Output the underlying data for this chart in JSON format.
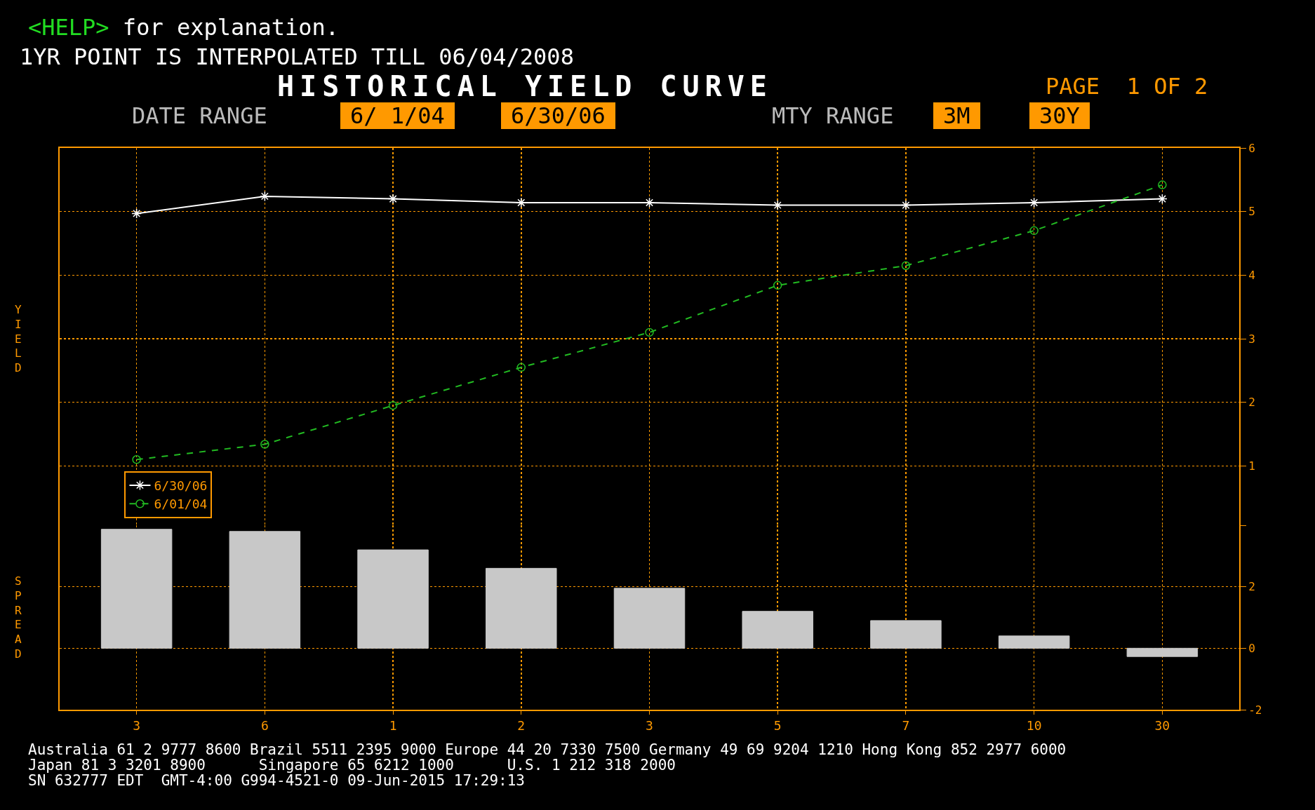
{
  "chart_data": [
    {
      "type": "line",
      "title": "HISTORICAL YIELD CURVE",
      "ylabel": "YIELD",
      "annotations": [
        "<HELP> for explanation.",
        "1YR POINT IS INTERPOLATED TILL 06/04/2008",
        "PAGE  1 OF 2",
        "DATE RANGE",
        "6/ 1/04",
        "6/30/06",
        "MTY RANGE",
        "3M",
        "30Y"
      ],
      "categories": [
        "3",
        "6",
        "1",
        "2",
        "3",
        "5",
        "7",
        "10",
        "30"
      ],
      "series": [
        {
          "name": "6/30/06",
          "color": "#ffffff",
          "marker": "cross",
          "line_style": "solid",
          "values": [
            4.97,
            5.24,
            5.2,
            5.14,
            5.14,
            5.1,
            5.1,
            5.14,
            5.2
          ]
        },
        {
          "name": "6/01/04",
          "color": "#22bb22",
          "marker": "circle",
          "line_style": "dashed",
          "values": [
            1.1,
            1.34,
            1.95,
            2.55,
            3.1,
            3.84,
            4.15,
            4.7,
            5.42
          ]
        }
      ],
      "ylim": [
        0,
        6
      ],
      "yticks": [
        {
          "value": 0,
          "label": null
        },
        1,
        2,
        3,
        4,
        5,
        6
      ],
      "grid": true,
      "legend": "bottom left",
      "tick_labels": "y"
    },
    {
      "type": "bar",
      "ylabel": "SPREAD",
      "annotations": [
        "Australia 61 2 9777 8600 Brazil 5511 2395 9000 Europe 44 20 7330 7500 Germany 49 69 9204 1210 Hong Kong 852 2977 6000",
        "Japan 81 3 3201 8900      Singapore 65 6212 1000      U.S. 1 212 318 2000",
        "SN 632777 EDT  GMT-4:00 G994-4521-0 09-Jun-2015 17:29:13"
      ],
      "categories": [
        "3",
        "6",
        "1",
        "2",
        "3",
        "5",
        "7",
        "10",
        "30"
      ],
      "values": [
        3.87,
        3.8,
        3.2,
        2.6,
        1.95,
        1.2,
        0.9,
        0.4,
        -0.27
      ],
      "color": "#c8c8c8",
      "ylim": [
        -2,
        4
      ],
      "yticks": [
        -2,
        0,
        2,
        {
          "value": 4,
          "label": null
        }
      ],
      "grid": true
    }
  ]
}
